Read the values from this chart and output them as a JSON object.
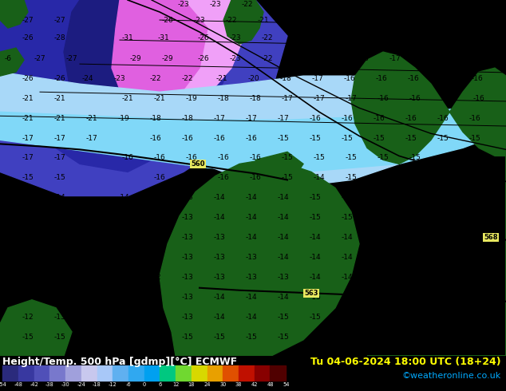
{
  "title_left": "Height/Temp. 500 hPa [gdmp][°C] ECMWF",
  "title_right": "Tu 04-06-2024 18:00 UTC (18+24)",
  "subtitle_right": "©weatheronline.co.uk",
  "colorbar_tick_labels": [
    "-54",
    "-48",
    "-42",
    "-38",
    "-30",
    "-24",
    "-18",
    "-12",
    "-6",
    "0",
    "6",
    "12",
    "18",
    "24",
    "30",
    "38",
    "42",
    "48",
    "54"
  ],
  "colorbar_colors": [
    "#2a2a7c",
    "#3838a0",
    "#5050b8",
    "#7878cc",
    "#a0a0dc",
    "#c8c8ee",
    "#a8c8f8",
    "#60b0f0",
    "#30a8f0",
    "#00a0f0",
    "#00c880",
    "#70d830",
    "#d8d800",
    "#e8a000",
    "#e05000",
    "#c01000",
    "#880000",
    "#500000"
  ],
  "bg_cyan": "#30c0f0",
  "bg_light_cyan": "#80d8f8",
  "bg_dark_blue": "#1c1c80",
  "bg_med_blue": "#2828a8",
  "bg_blue": "#4040c0",
  "bg_pink": "#e060e0",
  "bg_light_pink": "#f0a0f8",
  "bg_pale_blue": "#a8d8f8",
  "bg_green": "#186018",
  "bg_green2": "#207820",
  "contour_color": "#000000",
  "text_color": "#000000",
  "label_fontsize": 6.5,
  "bottom_bg": "#000000",
  "title_color": "#ffffff",
  "title_right_color": "#ffff00",
  "credit_color": "#00aaff",
  "font_size_title": 9,
  "font_size_credit": 8
}
